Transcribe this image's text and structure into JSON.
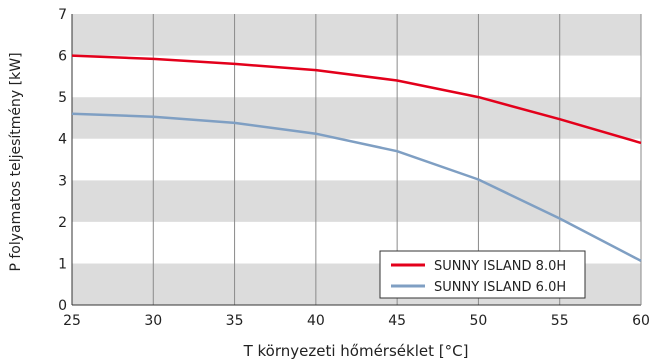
{
  "chart_data": {
    "type": "line",
    "xlabel": "T környezeti hőmérséklet [°C]",
    "ylabel": "P folyamatos teljesítmény [kW]",
    "xlim": [
      25,
      60
    ],
    "ylim": [
      0,
      7
    ],
    "x_ticks": [
      "25",
      "30",
      "35",
      "40",
      "45",
      "50",
      "55",
      "60"
    ],
    "y_ticks": [
      "0",
      "1",
      "2",
      "3",
      "4",
      "5",
      "6",
      "7"
    ],
    "grid": "vertical lines, alternating horizontal bands",
    "legend_position": "bottom-right",
    "series": [
      {
        "name": "SUNNY ISLAND 8.0H",
        "color": "#e3001b",
        "x": [
          25,
          30,
          35,
          40,
          45,
          50,
          55,
          60
        ],
        "y": [
          6.0,
          5.92,
          5.8,
          5.65,
          5.4,
          5.0,
          4.47,
          3.9
        ]
      },
      {
        "name": "SUNNY ISLAND 6.0H",
        "color": "#7f9fc3",
        "x": [
          25,
          30,
          35,
          40,
          45,
          50,
          55,
          60
        ],
        "y": [
          4.6,
          4.53,
          4.38,
          4.12,
          3.7,
          3.02,
          2.08,
          1.06
        ]
      }
    ]
  }
}
